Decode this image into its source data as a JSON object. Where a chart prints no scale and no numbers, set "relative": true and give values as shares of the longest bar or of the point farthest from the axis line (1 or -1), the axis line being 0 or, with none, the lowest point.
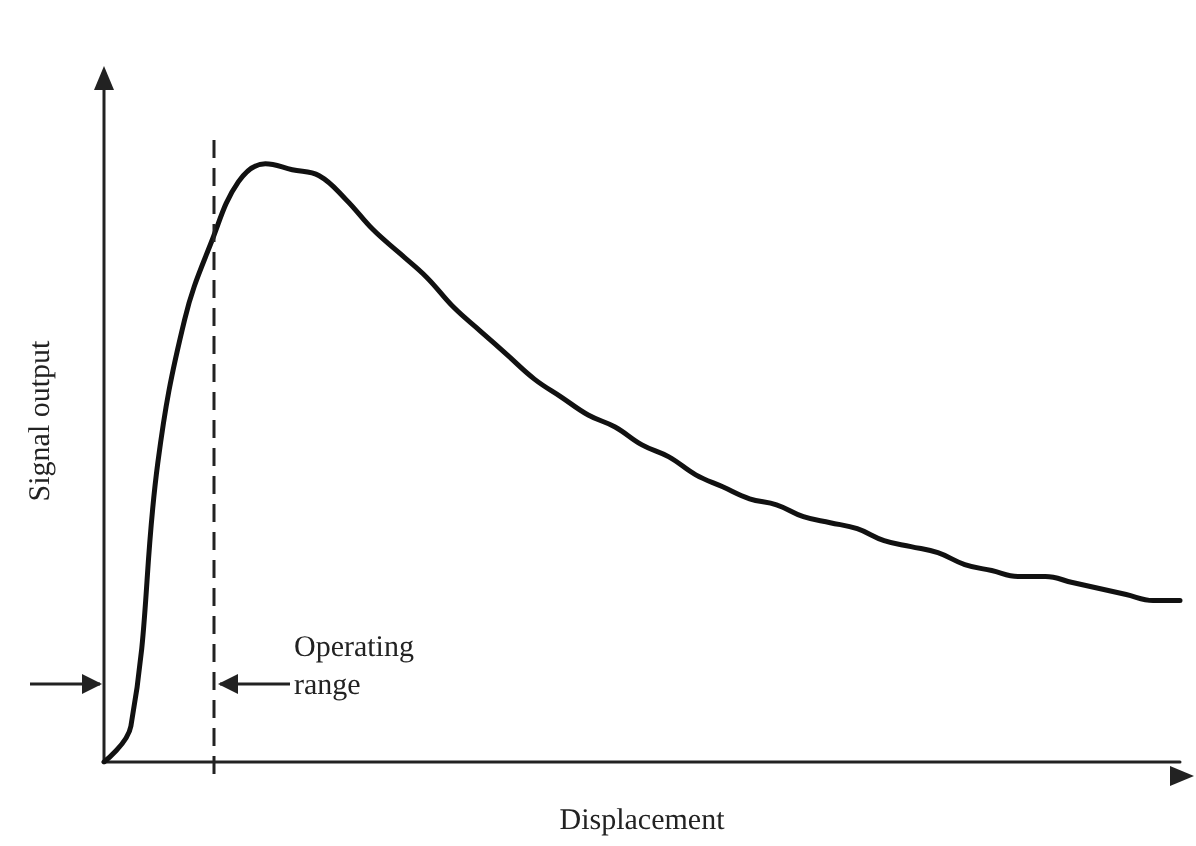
{
  "chart_data": {
    "type": "line",
    "relative": true,
    "xlabel": "Displacement",
    "ylabel": "Signal output",
    "annotations": [
      "Operating range"
    ],
    "categories": [
      null,
      null,
      null,
      null,
      null,
      null,
      null,
      null,
      null,
      null,
      null,
      null,
      null,
      null,
      null,
      null,
      null,
      null,
      null,
      null,
      null,
      null,
      null,
      null,
      null,
      null,
      null,
      null,
      null,
      null,
      null,
      null,
      null,
      null,
      null,
      null,
      null,
      null,
      null,
      null,
      null
    ],
    "series": [
      {
        "color": "#111111",
        "values": [
          0,
          0.06,
          0.5,
          0.74,
          0.87,
          0.97,
          1,
          0.99,
          0.98,
          0.94,
          0.89,
          0.85,
          0.81,
          0.76,
          0.72,
          0.68,
          0.64,
          0.61,
          0.58,
          0.56,
          0.53,
          0.51,
          0.48,
          0.46,
          0.44,
          0.43,
          0.41,
          0.4,
          0.39,
          0.37,
          0.36,
          0.35,
          0.33,
          0.32,
          0.31,
          0.31,
          0.3,
          0.29,
          0.28,
          0.27,
          0.27
        ]
      }
    ],
    "marker": "none",
    "line_style": "solid"
  }
}
